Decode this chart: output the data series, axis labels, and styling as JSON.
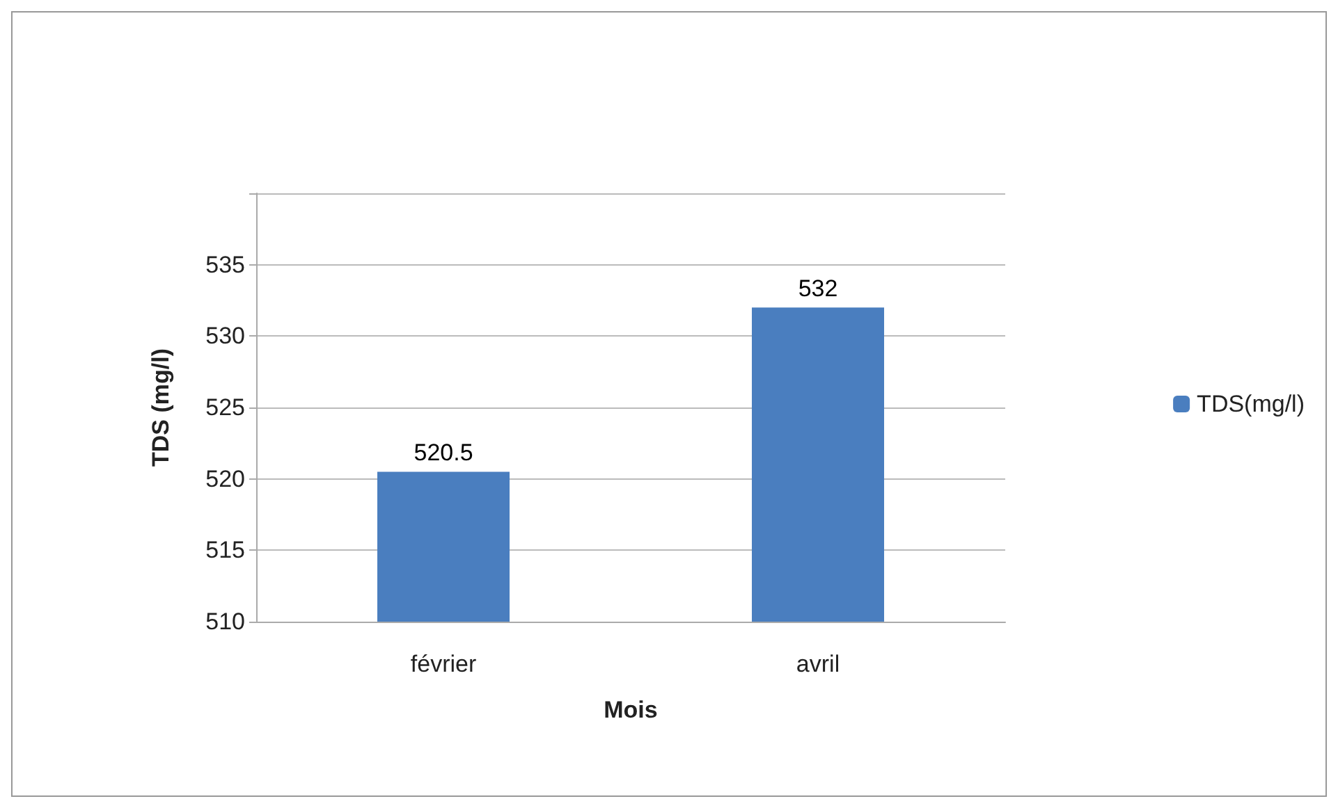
{
  "chart_data": {
    "type": "bar",
    "xlabel": "Mois",
    "ylabel": "TDS (mg/l)",
    "categories": [
      "février",
      "avril"
    ],
    "series": [
      {
        "name": "TDS(mg/l)",
        "color": "#4a7ebf",
        "values": [
          520.5,
          532
        ]
      }
    ],
    "ylim": [
      510,
      540
    ],
    "yticks": [
      510,
      515,
      520,
      525,
      530,
      535,
      {
        "value": 540,
        "label": null
      }
    ],
    "grid": "y",
    "legend": "right",
    "data_labels": true
  }
}
